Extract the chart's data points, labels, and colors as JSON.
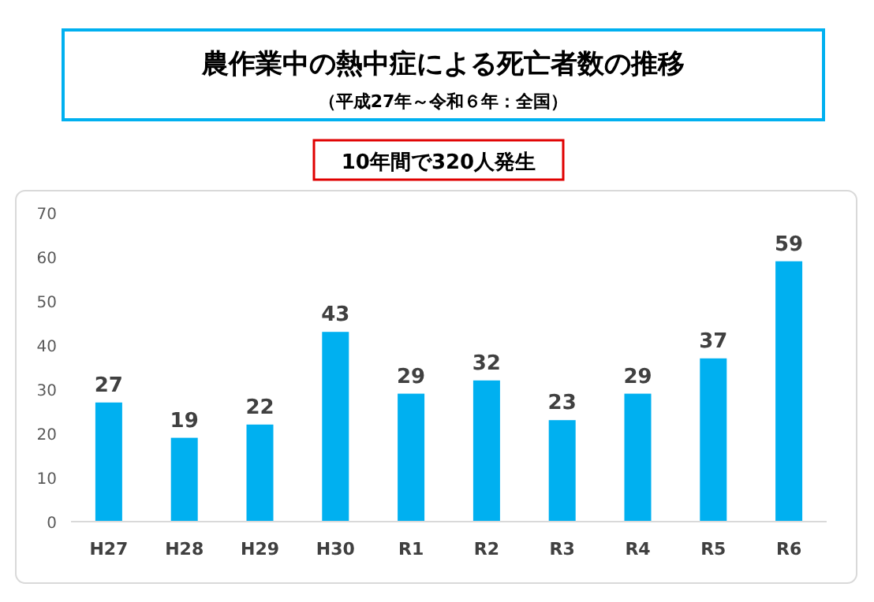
{
  "chart_data": {
    "type": "bar",
    "title": "農作業中の熱中症による死亡者数の推移",
    "subtitle": "（平成27年～令和６年：全国）",
    "annotations": [
      "10年間で320人発生"
    ],
    "categories": [
      "H27",
      "H28",
      "H29",
      "H30",
      "R1",
      "R2",
      "R3",
      "R4",
      "R5",
      "R6"
    ],
    "values": [
      27,
      19,
      22,
      43,
      29,
      32,
      23,
      29,
      37,
      59
    ],
    "color": "#00b0f0",
    "ylim": [
      0,
      70
    ],
    "yticks": [
      0,
      10,
      20,
      30,
      40,
      50,
      60,
      70
    ],
    "grid": false,
    "data_labels": true
  }
}
